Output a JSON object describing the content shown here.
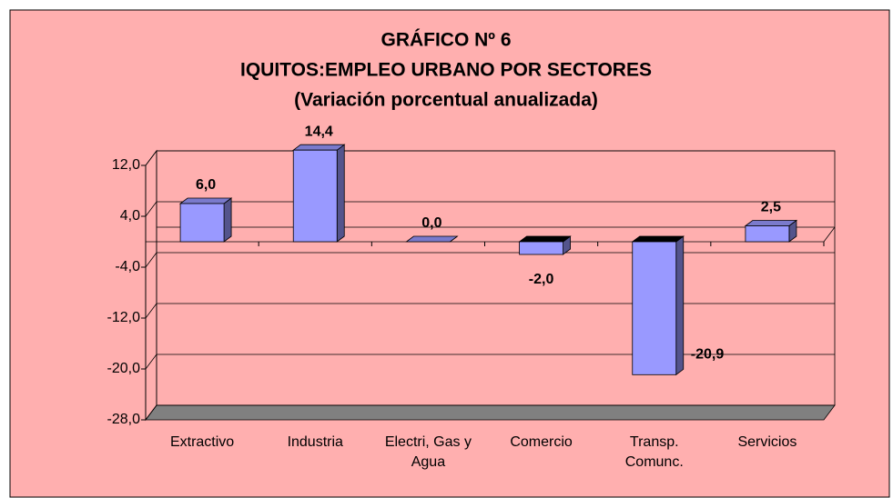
{
  "chart_data": {
    "type": "bar3d",
    "title": [
      "GRÁFICO Nº 6",
      "IQUITOS:EMPLEO URBANO POR SECTORES",
      "(Variación porcentual anualizada)"
    ],
    "categories": [
      "Extractivo",
      "Industria",
      "Electri, Gas y Agua",
      "Comercio",
      "Transp. Comunc.",
      "Servicios"
    ],
    "values": [
      6.0,
      14.4,
      0.0,
      -2.0,
      -20.9,
      2.5
    ],
    "value_labels": [
      "6,0",
      "14,4",
      "0,0",
      "-2,0",
      "-20,9",
      "2,5"
    ],
    "color": "#9999ff",
    "ylim": [
      -28,
      12
    ],
    "yticks": [
      {
        "value": 12,
        "label": "12,0"
      },
      {
        "value": 4,
        "label": "4,0"
      },
      {
        "value": -4,
        "label": "-4,0"
      },
      {
        "value": -12,
        "label": "-12,0"
      },
      {
        "value": -20,
        "label": "-20,0"
      },
      {
        "value": -28,
        "label": "-28,0"
      }
    ],
    "grid": true
  }
}
